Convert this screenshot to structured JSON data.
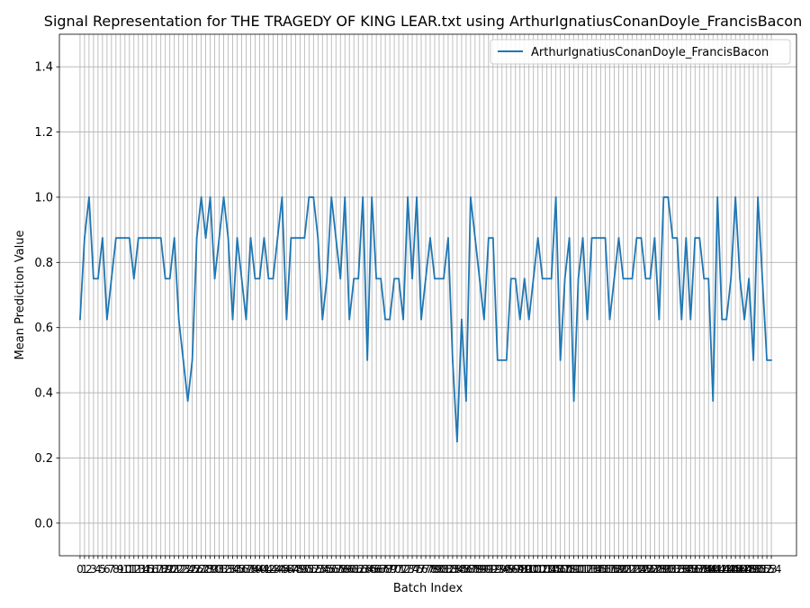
{
  "chart_data": {
    "type": "line",
    "title": "Signal Representation for THE TRAGEDY OF KING LEAR.txt using ArthurIgnatiusConanDoyle_FrancisBacon",
    "xlabel": "Batch Index",
    "ylabel": "Mean Prediction Value",
    "xlim": [
      -4.6,
      159.6
    ],
    "ylim": [
      -0.1,
      1.5
    ],
    "yticks": [
      0.0,
      0.2,
      0.4,
      0.6,
      0.8,
      1.0,
      1.2,
      1.4
    ],
    "ytick_labels": [
      "0.0",
      "0.2",
      "0.4",
      "0.6",
      "0.8",
      "1.0",
      "1.2",
      "1.4"
    ],
    "grid": true,
    "legend_position": "top-right",
    "colors": {
      "series": "#1f77b4",
      "grid": "#b0b0b0"
    },
    "series": [
      {
        "name": "ArthurIgnatiusConanDoyle_FrancisBacon",
        "values": [
          0.625,
          0.875,
          1.0,
          0.75,
          0.75,
          0.875,
          0.625,
          0.75,
          0.875,
          0.875,
          0.875,
          0.875,
          0.75,
          0.875,
          0.875,
          0.875,
          0.875,
          0.875,
          0.875,
          0.75,
          0.75,
          0.875,
          0.625,
          0.5,
          0.375,
          0.5,
          0.875,
          1.0,
          0.875,
          1.0,
          0.75,
          0.875,
          1.0,
          0.875,
          0.625,
          0.875,
          0.75,
          0.625,
          0.875,
          0.75,
          0.75,
          0.875,
          0.75,
          0.75,
          0.875,
          1.0,
          0.625,
          0.875,
          0.875,
          0.875,
          0.875,
          1.0,
          1.0,
          0.875,
          0.625,
          0.75,
          1.0,
          0.875,
          0.75,
          1.0,
          0.625,
          0.75,
          0.75,
          1.0,
          0.5,
          1.0,
          0.75,
          0.75,
          0.625,
          0.625,
          0.75,
          0.75,
          0.625,
          1.0,
          0.75,
          1.0,
          0.625,
          0.75,
          0.875,
          0.75,
          0.75,
          0.75,
          0.875,
          0.5,
          0.25,
          0.625,
          0.375,
          1.0,
          0.875,
          0.75,
          0.625,
          0.875,
          0.875,
          0.5,
          0.5,
          0.5,
          0.75,
          0.75,
          0.625,
          0.75,
          0.625,
          0.75,
          0.875,
          0.75,
          0.75,
          0.75,
          1.0,
          0.5,
          0.75,
          0.875,
          0.375,
          0.75,
          0.875,
          0.625,
          0.875,
          0.875,
          0.875,
          0.875,
          0.625,
          0.75,
          0.875,
          0.75,
          0.75,
          0.75,
          0.875,
          0.875,
          0.75,
          0.75,
          0.875,
          0.625,
          1.0,
          1.0,
          0.875,
          0.875,
          0.625,
          0.875,
          0.625,
          0.875,
          0.875,
          0.75,
          0.75,
          0.375,
          1.0,
          0.625,
          0.625,
          0.75,
          1.0,
          0.75,
          0.625,
          0.75,
          0.5,
          1.0,
          0.75,
          0.5,
          0.5
        ]
      }
    ]
  }
}
